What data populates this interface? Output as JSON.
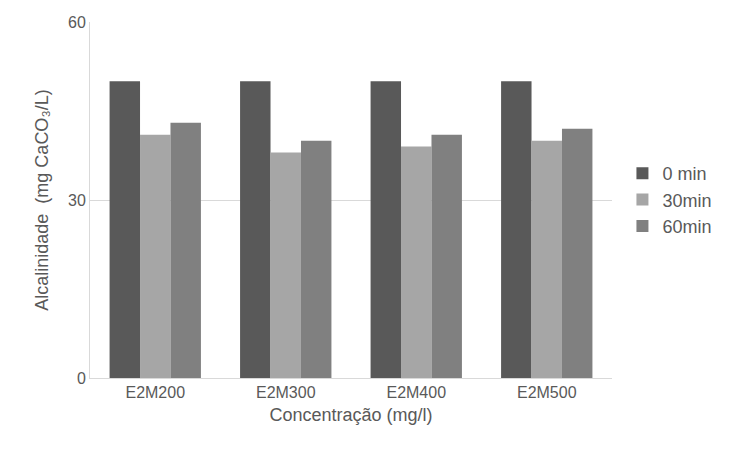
{
  "chart_data": {
    "type": "bar",
    "x_label": "Concentração (mg/l)",
    "y_label": "Alcalinidade  (mg CaCO₃/L)",
    "categories": [
      "E2M200",
      "E2M300",
      "E2M400",
      "E2M500"
    ],
    "series": [
      {
        "name": "0 min",
        "color": "#595959",
        "values": [
          50,
          50,
          50,
          50
        ]
      },
      {
        "name": "30min",
        "color": "#a6a6a6",
        "values": [
          41,
          38,
          39,
          40
        ]
      },
      {
        "name": "60min",
        "color": "#808080",
        "values": [
          43,
          40,
          41,
          42
        ]
      }
    ],
    "ylim": [
      0,
      60
    ],
    "yticks": [
      0,
      30,
      60
    ],
    "grid": true,
    "legend": "right"
  }
}
